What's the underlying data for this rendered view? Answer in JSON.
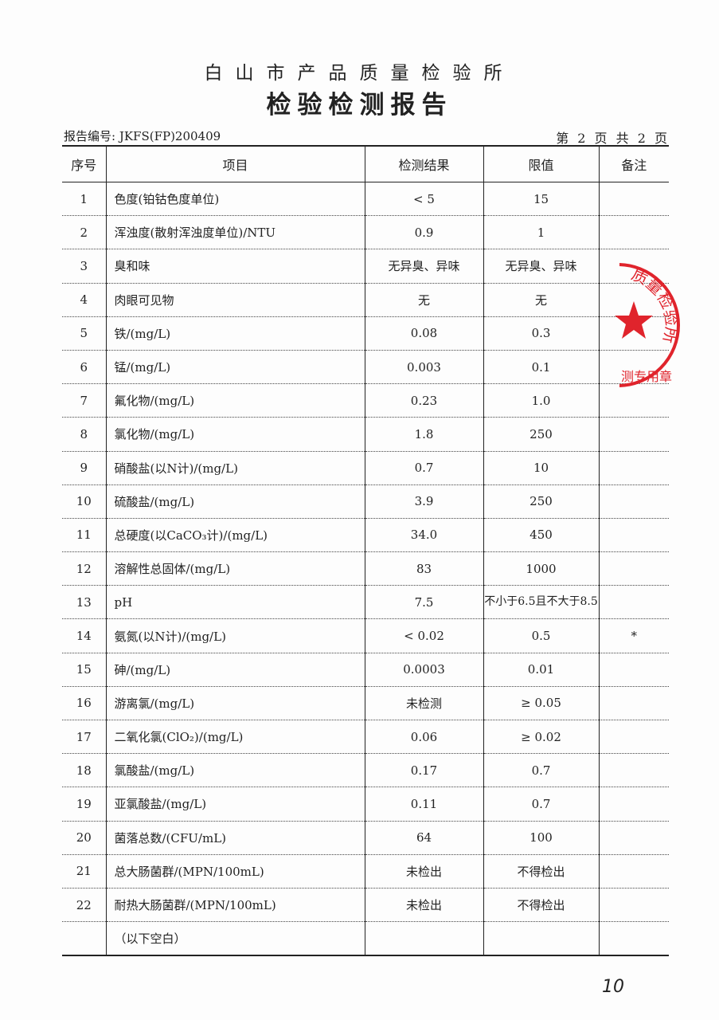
{
  "header": {
    "institution": "白山市产品质量检验所",
    "title": "检验检测报告",
    "report_no": "报告编号: JKFS(FP)200409",
    "page": "第 2 页 共 2 页"
  },
  "table": {
    "columns": [
      "序号",
      "项目",
      "检测结果",
      "限值",
      "备注"
    ],
    "rows": [
      [
        "1",
        "色度(铂钴色度单位)",
        "< 5",
        "15",
        ""
      ],
      [
        "2",
        "浑浊度(散射浑浊度单位)/NTU",
        "0.9",
        "1",
        ""
      ],
      [
        "3",
        "臭和味",
        "无异臭、异味",
        "无异臭、异味",
        ""
      ],
      [
        "4",
        "肉眼可见物",
        "无",
        "无",
        ""
      ],
      [
        "5",
        "铁/(mg/L)",
        "0.08",
        "0.3",
        ""
      ],
      [
        "6",
        "锰/(mg/L)",
        "0.003",
        "0.1",
        ""
      ],
      [
        "7",
        "氟化物/(mg/L)",
        "0.23",
        "1.0",
        ""
      ],
      [
        "8",
        "氯化物/(mg/L)",
        "1.8",
        "250",
        ""
      ],
      [
        "9",
        "硝酸盐(以N计)/(mg/L)",
        "0.7",
        "10",
        ""
      ],
      [
        "10",
        "硫酸盐/(mg/L)",
        "3.9",
        "250",
        ""
      ],
      [
        "11",
        "总硬度(以CaCO₃计)/(mg/L)",
        "34.0",
        "450",
        ""
      ],
      [
        "12",
        "溶解性总固体/(mg/L)",
        "83",
        "1000",
        ""
      ],
      [
        "13",
        "pH",
        "7.5",
        "不小于6.5且不大于8.5",
        ""
      ],
      [
        "14",
        "氨氮(以N计)/(mg/L)",
        "< 0.02",
        "0.5",
        "*"
      ],
      [
        "15",
        "砷/(mg/L)",
        "0.0003",
        "0.01",
        ""
      ],
      [
        "16",
        "游离氯/(mg/L)",
        "未检测",
        "≥ 0.05",
        ""
      ],
      [
        "17",
        "二氧化氯(ClO₂)/(mg/L)",
        "0.06",
        "≥ 0.02",
        ""
      ],
      [
        "18",
        "氯酸盐/(mg/L)",
        "0.17",
        "0.7",
        ""
      ],
      [
        "19",
        "亚氯酸盐/(mg/L)",
        "0.11",
        "0.7",
        ""
      ],
      [
        "20",
        "菌落总数/(CFU/mL)",
        "64",
        "100",
        ""
      ],
      [
        "21",
        "总大肠菌群/(MPN/100mL)",
        "未检出",
        "不得检出",
        ""
      ],
      [
        "22",
        "耐热大肠菌群/(MPN/100mL)",
        "未检出",
        "不得检出",
        ""
      ],
      [
        "",
        "（以下空白）",
        "",
        "",
        ""
      ]
    ]
  },
  "seal": {
    "text": "质量检验所",
    "bottom_text": "测专用章",
    "color": "#e0242c"
  },
  "handwritten_page_no": "10"
}
